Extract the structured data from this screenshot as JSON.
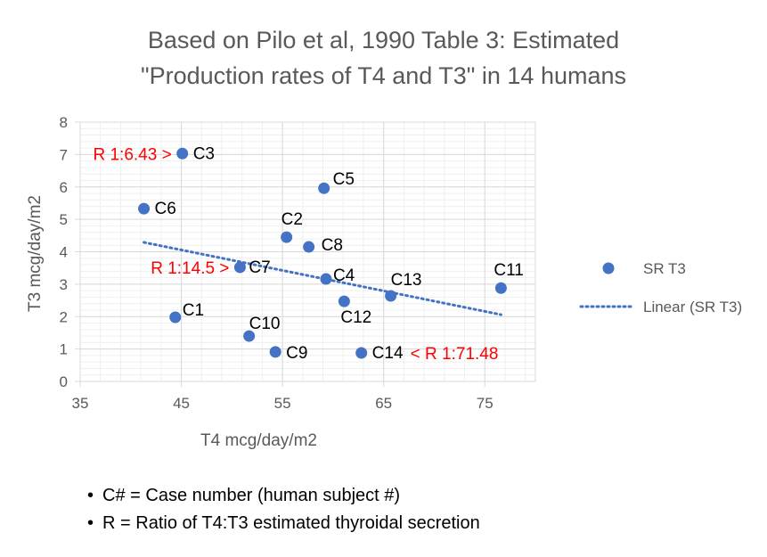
{
  "chart_data": {
    "type": "scatter",
    "title_lines": [
      "Based on Pilo et al, 1990 Table 3: Estimated",
      "\"Production rates of T4 and T3\" in 14 humans"
    ],
    "xlabel": "T4 mcg/day/m2",
    "ylabel": "T3 mcg/day/m2",
    "xlim": [
      35,
      80
    ],
    "ylim": [
      0,
      8
    ],
    "xticks": [
      35,
      45,
      55,
      65,
      75
    ],
    "yticks": [
      0,
      1,
      2,
      3,
      4,
      5,
      6,
      7,
      8
    ],
    "grid": true,
    "legend_placement": "right",
    "series": [
      {
        "name": "SR T3",
        "color": "#4472C4",
        "points": [
          {
            "label": "C1",
            "x": 44.4,
            "y": 1.98
          },
          {
            "label": "C2",
            "x": 55.4,
            "y": 4.45
          },
          {
            "label": "C3",
            "x": 45.1,
            "y": 7.03
          },
          {
            "label": "C4",
            "x": 59.3,
            "y": 3.16
          },
          {
            "label": "C5",
            "x": 59.1,
            "y": 5.96
          },
          {
            "label": "C6",
            "x": 41.3,
            "y": 5.33
          },
          {
            "label": "C7",
            "x": 50.8,
            "y": 3.52
          },
          {
            "label": "C8",
            "x": 57.6,
            "y": 4.15
          },
          {
            "label": "C9",
            "x": 54.3,
            "y": 0.91
          },
          {
            "label": "C10",
            "x": 51.7,
            "y": 1.4
          },
          {
            "label": "C11",
            "x": 76.6,
            "y": 2.88
          },
          {
            "label": "C12",
            "x": 61.1,
            "y": 2.47
          },
          {
            "label": "C13",
            "x": 65.7,
            "y": 2.64
          },
          {
            "label": "C14",
            "x": 62.8,
            "y": 0.88
          }
        ]
      }
    ],
    "trendline": {
      "name": "Linear (SR T3)",
      "type": "linear",
      "color": "#4472C4",
      "from": [
        41.3,
        4.29
      ],
      "to": [
        76.6,
        2.06
      ]
    },
    "annotations": [
      {
        "text": "R 1:6.43 >",
        "target": "C3",
        "color": "#FF0000"
      },
      {
        "text": "R 1:14.5 >",
        "target": "C7",
        "color": "#FF0000"
      },
      {
        "text": "< R 1:71.48",
        "target": "C14",
        "color": "#FF0000"
      }
    ]
  },
  "notes": [
    "C# = Case number (human subject #)",
    "R = Ratio of T4:T3 estimated thyroidal secretion"
  ]
}
